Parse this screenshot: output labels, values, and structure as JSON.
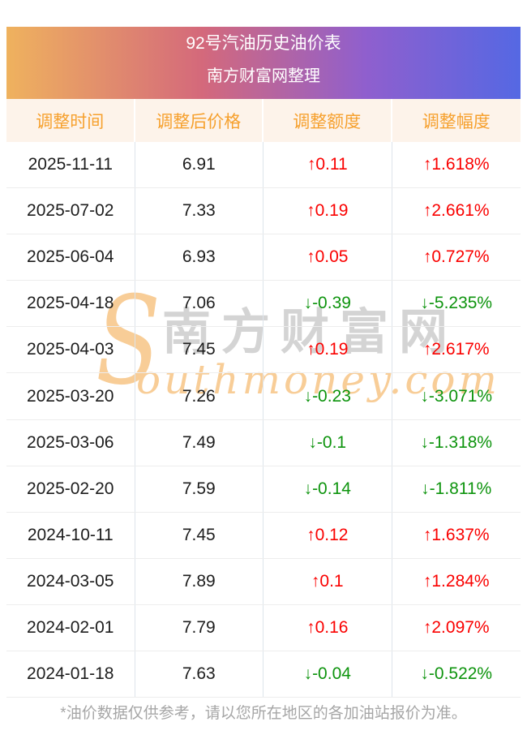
{
  "banner": {
    "title": "92号汽油历史油价表",
    "subtitle": "南方财富网整理"
  },
  "table": {
    "columns": [
      "调整时间",
      "调整后价格",
      "调整额度",
      "调整幅度"
    ],
    "rows": [
      {
        "date": "2025-11-11",
        "price": "6.91",
        "change": "↑0.11",
        "percent": "↑1.618%",
        "trend": "up"
      },
      {
        "date": "2025-07-02",
        "price": "7.33",
        "change": "↑0.19",
        "percent": "↑2.661%",
        "trend": "up"
      },
      {
        "date": "2025-06-04",
        "price": "6.93",
        "change": "↑0.05",
        "percent": "↑0.727%",
        "trend": "up"
      },
      {
        "date": "2025-04-18",
        "price": "7.06",
        "change": "↓-0.39",
        "percent": "↓-5.235%",
        "trend": "down"
      },
      {
        "date": "2025-04-03",
        "price": "7.45",
        "change": "↑0.19",
        "percent": "↑2.617%",
        "trend": "up"
      },
      {
        "date": "2025-03-20",
        "price": "7.26",
        "change": "↓-0.23",
        "percent": "↓-3.071%",
        "trend": "down"
      },
      {
        "date": "2025-03-06",
        "price": "7.49",
        "change": "↓-0.1",
        "percent": "↓-1.318%",
        "trend": "down"
      },
      {
        "date": "2025-02-20",
        "price": "7.59",
        "change": "↓-0.14",
        "percent": "↓-1.811%",
        "trend": "down"
      },
      {
        "date": "2024-10-11",
        "price": "7.45",
        "change": "↑0.12",
        "percent": "↑1.637%",
        "trend": "up"
      },
      {
        "date": "2024-03-05",
        "price": "7.89",
        "change": "↑0.1",
        "percent": "↑1.284%",
        "trend": "up"
      },
      {
        "date": "2024-02-01",
        "price": "7.79",
        "change": "↑0.16",
        "percent": "↑2.097%",
        "trend": "up"
      },
      {
        "date": "2024-01-18",
        "price": "7.63",
        "change": "↓-0.04",
        "percent": "↓-0.522%",
        "trend": "down"
      }
    ]
  },
  "watermark": {
    "s": "S",
    "cn": "南方财富网",
    "en": "outhmoney.com"
  },
  "footer": {
    "note": "*油价数据仅供参考，请以您所在地区的各加油站报价为准。"
  },
  "colors": {
    "up": "#fa0100",
    "down": "#0e940e",
    "header_text": "#f6a02d",
    "header_bg": "#fdf3ea",
    "banner_gradient": [
      "#efb25e",
      "#d4697b",
      "#8f5fce",
      "#5568e3"
    ]
  }
}
